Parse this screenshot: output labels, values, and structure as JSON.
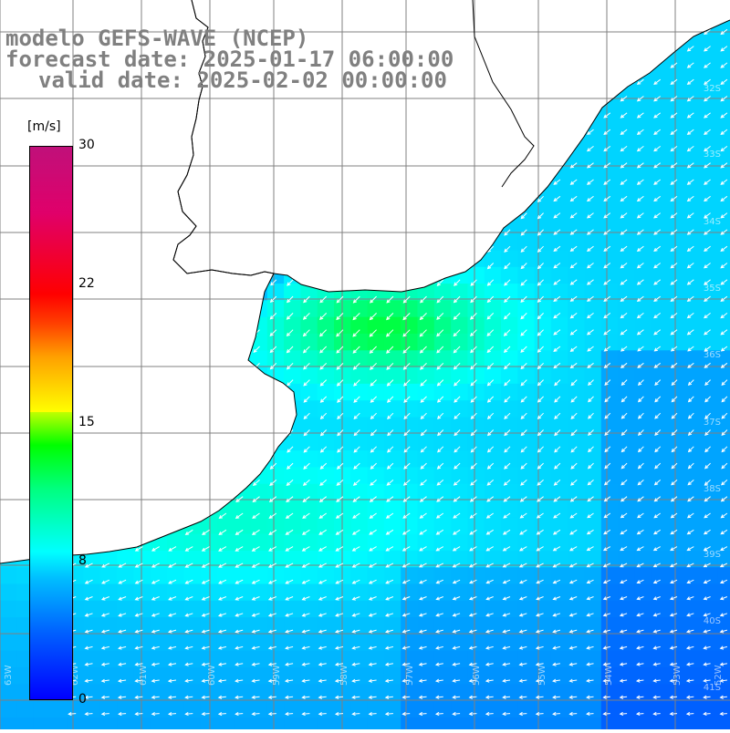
{
  "title": {
    "model": "modelo GEFS-WAVE (NCEP)",
    "forecast": "forecast date: 2025-01-17 06:00:00",
    "valid": "valid date: 2025-02-02 00:00:00"
  },
  "colorbar": {
    "unit": "[m/s]",
    "min": 0,
    "max": 30,
    "ticks": [
      "30",
      "22",
      "15",
      "8",
      "0"
    ],
    "tick_values": [
      30,
      22,
      15,
      8,
      0
    ],
    "colors": [
      "#0000ff",
      "#00bfff",
      "#00ffff",
      "#00ff00",
      "#ffff00",
      "#ff0000",
      "#c0107a"
    ]
  },
  "map": {
    "grid_color": "#808080",
    "coast_color": "#000000",
    "land_color": "#ffffff",
    "arrow_color": "#ffffff",
    "lat_labels": [
      "32S",
      "33S",
      "34S",
      "35S",
      "36S",
      "37S",
      "38S",
      "39S",
      "40S",
      "41S"
    ],
    "lon_labels": [
      "63W",
      "62W",
      "61W",
      "60W",
      "59W",
      "58W",
      "57W",
      "56W",
      "55W",
      "54W",
      "53W",
      "52W"
    ]
  }
}
